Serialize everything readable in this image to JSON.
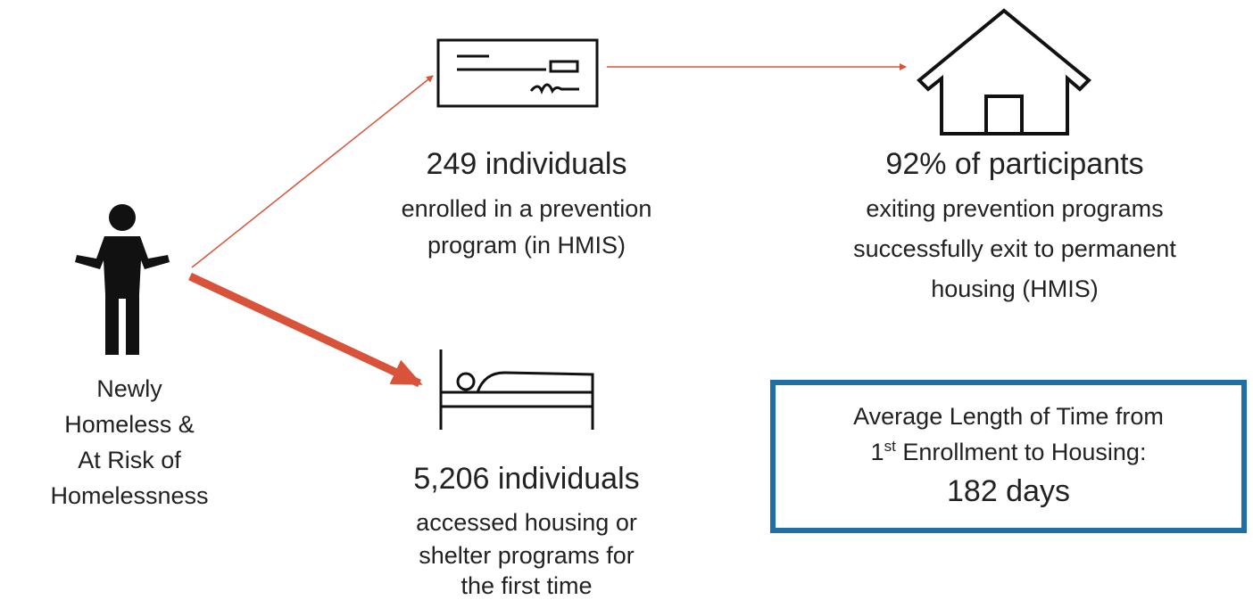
{
  "person": {
    "label": [
      "Newly",
      "Homeless &",
      "At Risk of",
      "Homelessness"
    ]
  },
  "prevention": {
    "headline": "249 individuals",
    "lines": [
      "enrolled in a prevention",
      "program (in HMIS)"
    ]
  },
  "shelter": {
    "headline": "5,206 individuals",
    "lines": [
      "accessed housing or",
      "shelter programs for",
      "the first time"
    ]
  },
  "housing": {
    "headline": "92% of participants",
    "lines": [
      "exiting prevention programs",
      "successfully exit to permanent",
      "housing (HMIS)"
    ]
  },
  "box": {
    "line1": "Average Length of Time from",
    "line2": {
      "number": "1",
      "suffix": "st",
      "rest": " Enrollment to Housing:"
    },
    "value": "182 days"
  }
}
